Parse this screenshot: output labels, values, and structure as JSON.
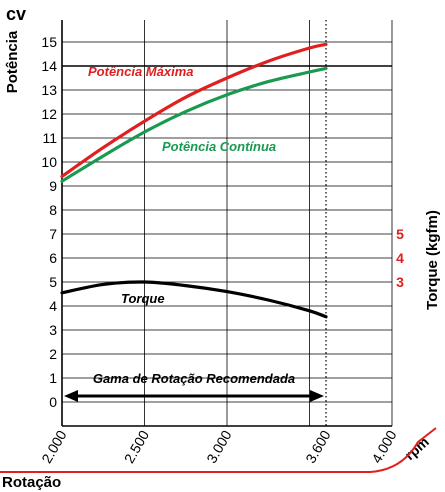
{
  "chart_data": {
    "type": "line",
    "left_axis": {
      "title": "Potência",
      "unit": "cv",
      "range": [
        0,
        15
      ],
      "ticks": [
        0,
        1,
        2,
        3,
        4,
        5,
        6,
        7,
        8,
        9,
        10,
        11,
        12,
        13,
        14,
        15
      ]
    },
    "right_axis": {
      "title": "Torque (kgfm)",
      "tick_labels": [
        "5",
        "4",
        "3"
      ],
      "tick_positions_on_left_scale": [
        7,
        6,
        5
      ]
    },
    "x_axis": {
      "title": "Rotação",
      "unit": "rpm",
      "range": [
        2000,
        4000
      ],
      "tick_values": [
        2000,
        2500,
        3000,
        3600,
        4000
      ],
      "tick_labels": [
        "2.000",
        "2.500",
        "3.000",
        "3.600",
        "4.000"
      ]
    },
    "grid": true,
    "reference_line": {
      "x": 3600,
      "style": "dotted"
    },
    "recommended_range": {
      "label": "Gama de Rotação Recomendada",
      "from": 2000,
      "to": 3600
    },
    "series": [
      {
        "name": "Potência Máxima",
        "color": "#e02020",
        "x": [
          2000,
          2250,
          2500,
          2750,
          3000,
          3250,
          3500,
          3600
        ],
        "y": [
          9.4,
          10.6,
          11.7,
          12.7,
          13.5,
          14.2,
          14.75,
          14.9
        ]
      },
      {
        "name": "Potência Contínua",
        "color": "#1a9a50",
        "x": [
          2000,
          2250,
          2500,
          2750,
          3000,
          3250,
          3500,
          3600
        ],
        "y": [
          9.2,
          10.25,
          11.25,
          12.1,
          12.8,
          13.35,
          13.75,
          13.9
        ]
      },
      {
        "name": "Torque",
        "color": "#000000",
        "x": [
          2000,
          2250,
          2500,
          2750,
          3000,
          3250,
          3500,
          3600
        ],
        "y": [
          4.55,
          4.9,
          5.0,
          4.85,
          4.6,
          4.25,
          3.8,
          3.55
        ]
      }
    ],
    "series_label_colors": {
      "Potência Máxima": "#e02020",
      "Potência Contínua": "#1a9a50",
      "Torque": "#000000"
    }
  }
}
